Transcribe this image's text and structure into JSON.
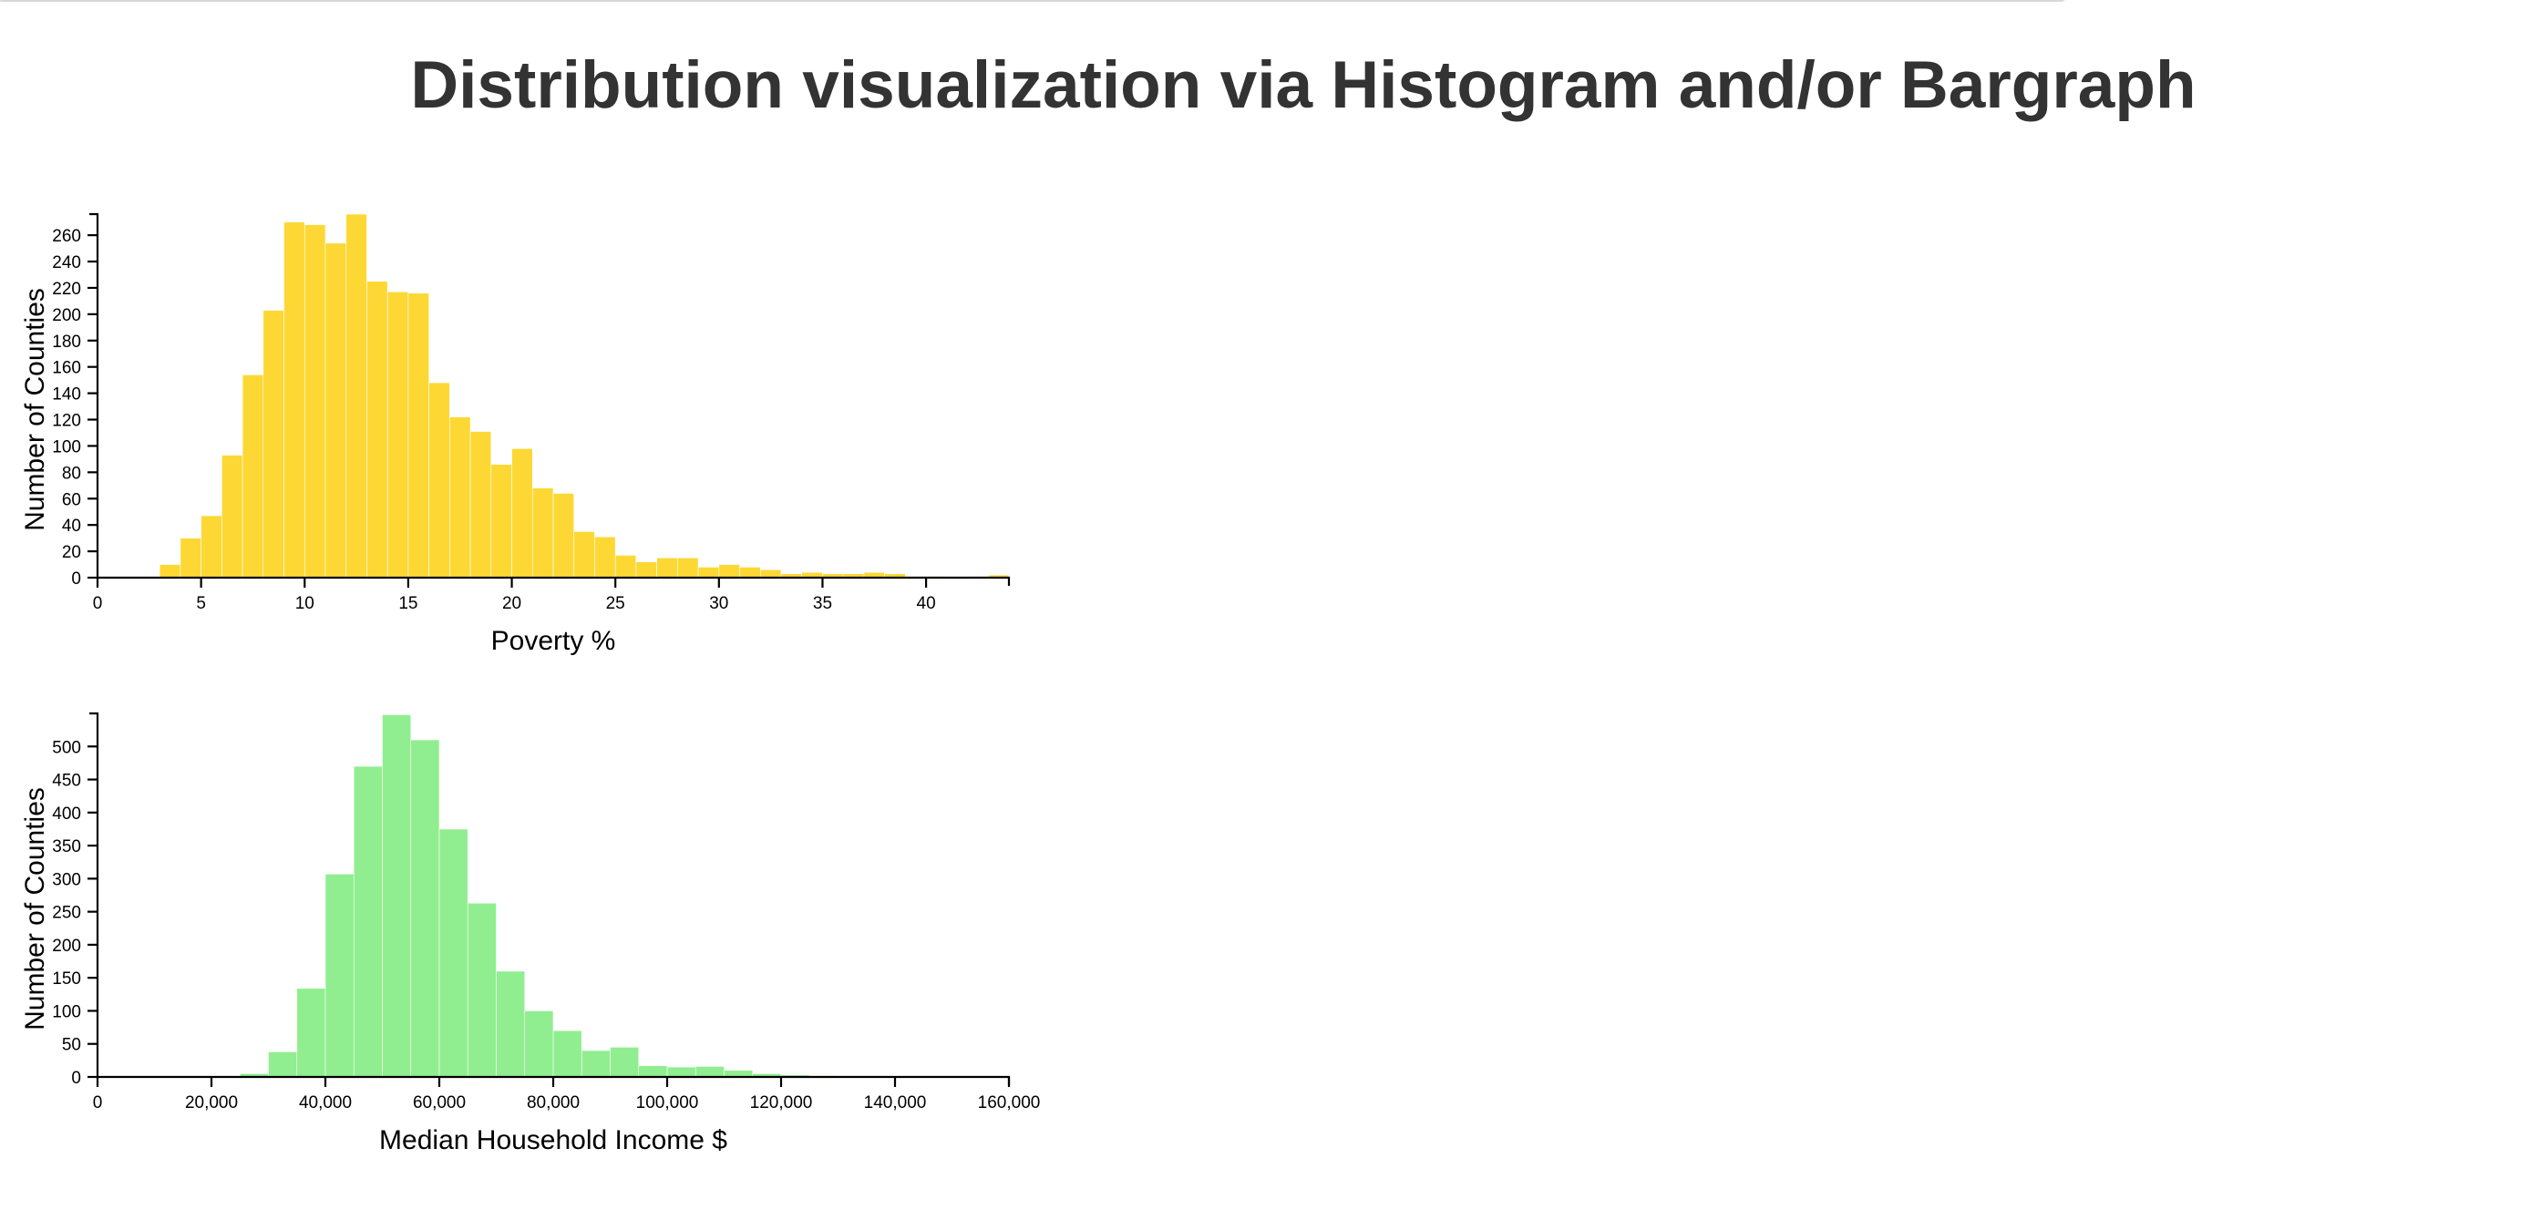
{
  "page": {
    "title": "Distribution visualization via Histogram and/or Bargraph"
  },
  "chart_data": [
    {
      "type": "bar",
      "subtype": "histogram",
      "color": "#fdd835",
      "xlabel": "Poverty %",
      "ylabel": "Number of Counties",
      "xlim": [
        0,
        44
      ],
      "ylim": [
        0,
        276
      ],
      "x_ticks": [
        0,
        5,
        10,
        15,
        20,
        25,
        30,
        35,
        40
      ],
      "y_ticks": [
        0,
        20,
        40,
        60,
        80,
        100,
        120,
        140,
        160,
        180,
        200,
        220,
        240,
        260
      ],
      "bin_width": 1,
      "bin_starts": [
        3,
        4,
        5,
        6,
        7,
        8,
        9,
        10,
        11,
        12,
        13,
        14,
        15,
        16,
        17,
        18,
        19,
        20,
        21,
        22,
        23,
        24,
        25,
        26,
        27,
        28,
        29,
        30,
        31,
        32,
        33,
        34,
        35,
        36,
        37,
        38,
        39,
        40,
        41,
        42,
        43
      ],
      "values": [
        10,
        30,
        47,
        93,
        154,
        203,
        270,
        268,
        254,
        276,
        225,
        217,
        216,
        148,
        122,
        111,
        86,
        98,
        68,
        64,
        35,
        31,
        17,
        12,
        15,
        15,
        8,
        10,
        8,
        6,
        3,
        4,
        3,
        3,
        4,
        3,
        1,
        1,
        0,
        1,
        2
      ]
    },
    {
      "type": "bar",
      "subtype": "histogram",
      "color": "#90ee90",
      "xlabel": "Median Household Income $",
      "ylabel": "Number of Counties",
      "xlim": [
        0,
        160000
      ],
      "ylim": [
        0,
        550
      ],
      "x_ticks": [
        0,
        20000,
        40000,
        60000,
        80000,
        100000,
        120000,
        140000,
        160000
      ],
      "x_tick_labels": [
        "0",
        "20,000",
        "40,000",
        "60,000",
        "80,000",
        "100,000",
        "120,000",
        "140,000",
        "160,000"
      ],
      "y_ticks": [
        0,
        50,
        100,
        150,
        200,
        250,
        300,
        350,
        400,
        450,
        500
      ],
      "bin_width": 5000,
      "bin_starts": [
        25000,
        30000,
        35000,
        40000,
        45000,
        50000,
        55000,
        60000,
        65000,
        70000,
        75000,
        80000,
        85000,
        90000,
        95000,
        100000,
        105000,
        110000,
        115000,
        120000,
        125000,
        130000,
        135000
      ],
      "values": [
        5,
        38,
        134,
        307,
        470,
        548,
        510,
        375,
        263,
        160,
        100,
        70,
        40,
        45,
        17,
        15,
        16,
        10,
        5,
        3,
        2,
        1,
        1
      ]
    }
  ]
}
